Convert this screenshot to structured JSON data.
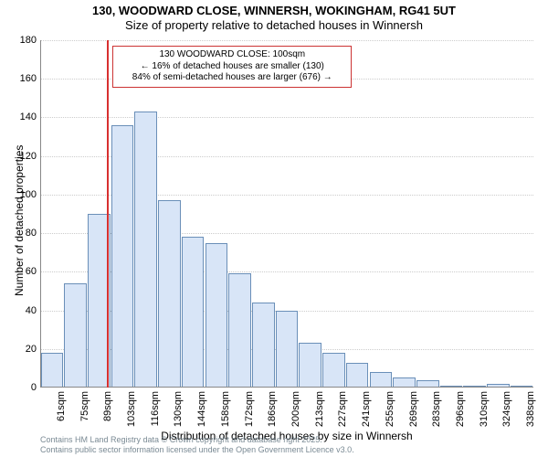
{
  "title": {
    "line1": "130, WOODWARD CLOSE, WINNERSH, WOKINGHAM, RG41 5UT",
    "line2": "Size of property relative to detached houses in Winnersh",
    "fontsize": 13
  },
  "chart": {
    "type": "histogram",
    "ylim": [
      0,
      180
    ],
    "yticks": [
      0,
      20,
      40,
      60,
      80,
      100,
      120,
      140,
      160,
      180
    ],
    "xtick_labels": [
      "61sqm",
      "75sqm",
      "89sqm",
      "103sqm",
      "116sqm",
      "130sqm",
      "144sqm",
      "158sqm",
      "172sqm",
      "186sqm",
      "200sqm",
      "213sqm",
      "227sqm",
      "241sqm",
      "255sqm",
      "269sqm",
      "283sqm",
      "296sqm",
      "310sqm",
      "324sqm",
      "338sqm"
    ],
    "values": [
      18,
      54,
      90,
      136,
      143,
      97,
      78,
      75,
      59,
      44,
      40,
      23,
      18,
      13,
      8,
      5,
      4,
      1,
      1,
      2,
      1
    ],
    "bar_fill": "#d8e5f7",
    "bar_border": "#6a8fb8",
    "grid_color": "#cccccc",
    "background_color": "#ffffff",
    "y_axis_title": "Number of detached properties",
    "x_axis_title": "Distribution of detached houses by size in Winnersh",
    "label_fontsize": 11,
    "axis_title_fontsize": 12
  },
  "reference": {
    "x_index": 2.85,
    "color": "#d83030",
    "box": {
      "line1": "130 WOODWARD CLOSE: 100sqm",
      "line2": "← 16% of detached houses are smaller (130)",
      "line3": "84% of semi-detached houses are larger (676) →",
      "border_color": "#cc3333"
    }
  },
  "footer": {
    "line1": "Contains HM Land Registry data © Crown copyright and database right 2025.",
    "line2": "Contains public sector information licensed under the Open Government Licence v3.0.",
    "color": "#7a8a94"
  }
}
